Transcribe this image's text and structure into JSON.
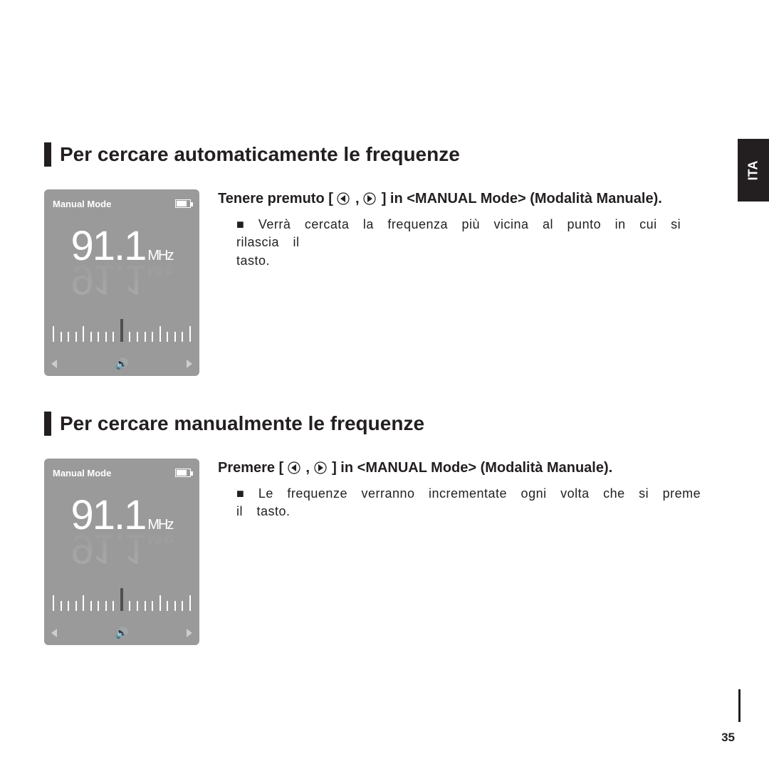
{
  "side_tab": "ITA",
  "page_number": "35",
  "device": {
    "mode_label": "Manual Mode",
    "frequency_value": "91.1",
    "frequency_unit": "MHz",
    "bg_color": "#9a9a9a",
    "text_color": "#ffffff"
  },
  "section1": {
    "heading": "Per cercare automaticamente le frequenze",
    "instruction_pre": "Tenere premuto [",
    "instruction_post": "] in <MANUAL Mode> (Modalità Manuale).",
    "sub_line1": "■ Verrà cercata la frequenza più vicina al punto in cui si rilascia il",
    "sub_line2": "tasto."
  },
  "section2": {
    "heading": "Per cercare manualmente le frequenze",
    "instruction_pre": "Premere [",
    "instruction_post": "] in <MANUAL Mode> (Modalità Manuale).",
    "sub_line1": "■ Le frequenze verranno incrementate ogni volta che si preme il tasto."
  },
  "ticks": [
    "med",
    "short",
    "short",
    "short",
    "med",
    "short",
    "short",
    "short",
    "short",
    "major",
    "short",
    "short",
    "short",
    "short",
    "med",
    "short",
    "short",
    "short",
    "med"
  ]
}
